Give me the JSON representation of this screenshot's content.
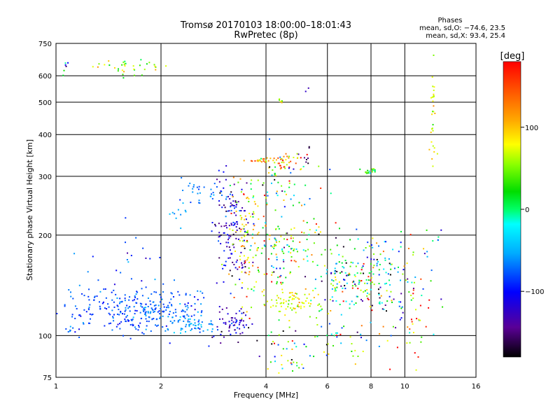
{
  "chart_data": {
    "type": "scatter",
    "title": "Tromsø 20170103 18:00:00–18:01:43",
    "subtitle": "RwPretec (8p)",
    "xlabel": "Frequency [MHz]",
    "ylabel": "Stationary phase Virtual Height [km]",
    "x_scale": "log",
    "y_scale": "log",
    "xlim": [
      1,
      16
    ],
    "ylim": [
      75,
      750
    ],
    "x_ticks": [
      1,
      2,
      4,
      6,
      8,
      10,
      16
    ],
    "y_ticks": [
      75,
      100,
      200,
      300,
      400,
      500,
      600,
      750
    ],
    "grid": true,
    "phase_box": {
      "heading": "Phases",
      "line_o": "mean, sd,O: −74.6, 23.5",
      "line_x": "mean, sd,X:  93.4, 25.4"
    },
    "colorbar": {
      "label": "[deg]",
      "min": -180,
      "max": 180,
      "ticks": [
        100,
        0,
        -100
      ]
    },
    "clusters": [
      {
        "x": 1.62,
        "y": 640,
        "xs": 0.12,
        "ys": 0.03,
        "n": 35,
        "p": 70,
        "ps": 40
      },
      {
        "x": 1.05,
        "y": 640,
        "xs": 0.02,
        "ys": 0.03,
        "n": 6,
        "p": -60,
        "ps": 60
      },
      {
        "x": 1.5,
        "y": 120,
        "xs": 0.2,
        "ys": 0.08,
        "n": 180,
        "p": -80,
        "ps": 12
      },
      {
        "x": 2.1,
        "y": 118,
        "xs": 0.15,
        "ys": 0.09,
        "n": 130,
        "p": -78,
        "ps": 15
      },
      {
        "x": 2.5,
        "y": 107,
        "xs": 0.08,
        "ys": 0.03,
        "n": 50,
        "p": -60,
        "ps": 15
      },
      {
        "x": 1.1,
        "y": 103,
        "xs": 0.05,
        "ys": 0.02,
        "n": 10,
        "p": -70,
        "ps": 20
      },
      {
        "x": 2.6,
        "y": 270,
        "xs": 0.08,
        "ys": 0.06,
        "n": 30,
        "p": -65,
        "ps": 15
      },
      {
        "x": 2.3,
        "y": 235,
        "xs": 0.05,
        "ys": 0.04,
        "n": 10,
        "p": -55,
        "ps": 10
      },
      {
        "x": 1.6,
        "y": 170,
        "xs": 0.12,
        "ys": 0.15,
        "n": 20,
        "p": -100,
        "ps": 30
      },
      {
        "x": 3.2,
        "y": 200,
        "xs": 0.06,
        "ys": 0.2,
        "n": 140,
        "p": -120,
        "ps": 25
      },
      {
        "x": 3.5,
        "y": 190,
        "xs": 0.05,
        "ys": 0.2,
        "n": 90,
        "p": 110,
        "ps": 40
      },
      {
        "x": 3.2,
        "y": 110,
        "xs": 0.06,
        "ys": 0.05,
        "n": 60,
        "p": -120,
        "ps": 20
      },
      {
        "x": 3.9,
        "y": 335,
        "xs": 0.05,
        "ys": 0.01,
        "n": 25,
        "p": 130,
        "ps": 25
      },
      {
        "x": 4.6,
        "y": 330,
        "xs": 0.06,
        "ys": 0.03,
        "n": 30,
        "p": 130,
        "ps": 40
      },
      {
        "x": 5.2,
        "y": 340,
        "xs": 0.02,
        "ys": 0.03,
        "n": 8,
        "p": -150,
        "ps": 15
      },
      {
        "x": 4.4,
        "y": 505,
        "xs": 0.01,
        "ys": 0.01,
        "n": 6,
        "p": 60,
        "ps": 40
      },
      {
        "x": 5.3,
        "y": 570,
        "xs": 0.02,
        "ys": 0.06,
        "n": 2,
        "p": -120,
        "ps": 10
      },
      {
        "x": 4.3,
        "y": 280,
        "xs": 0.12,
        "ys": 0.12,
        "n": 60,
        "p": 40,
        "ps": 100
      },
      {
        "x": 4.4,
        "y": 180,
        "xs": 0.12,
        "ys": 0.15,
        "n": 140,
        "p": 40,
        "ps": 80
      },
      {
        "x": 4.8,
        "y": 125,
        "xs": 0.08,
        "ys": 0.05,
        "n": 80,
        "p": 90,
        "ps": 25
      },
      {
        "x": 4.5,
        "y": 90,
        "xs": 0.1,
        "ys": 0.12,
        "n": 40,
        "p": 0,
        "ps": 100
      },
      {
        "x": 6.6,
        "y": 150,
        "xs": 0.08,
        "ys": 0.15,
        "n": 110,
        "p": 0,
        "ps": 100
      },
      {
        "x": 7.8,
        "y": 150,
        "xs": 0.05,
        "ys": 0.15,
        "n": 60,
        "p": 20,
        "ps": 100
      },
      {
        "x": 8.0,
        "y": 310,
        "xs": 0.03,
        "ys": 0.01,
        "n": 18,
        "p": 30,
        "ps": 20
      },
      {
        "x": 9.0,
        "y": 140,
        "xs": 0.06,
        "ys": 0.15,
        "n": 70,
        "p": -30,
        "ps": 100
      },
      {
        "x": 10.5,
        "y": 130,
        "xs": 0.07,
        "ys": 0.25,
        "n": 50,
        "p": 80,
        "ps": 90
      },
      {
        "x": 12.0,
        "y": 450,
        "xs": 0.01,
        "ys": 0.25,
        "n": 30,
        "p": 90,
        "ps": 20
      },
      {
        "x": 12.3,
        "y": 160,
        "xs": 0.05,
        "ys": 0.2,
        "n": 12,
        "p": -40,
        "ps": 60
      },
      {
        "x": 6.5,
        "y": 95,
        "xs": 0.15,
        "ys": 0.08,
        "n": 40,
        "p": 20,
        "ps": 100
      }
    ]
  }
}
